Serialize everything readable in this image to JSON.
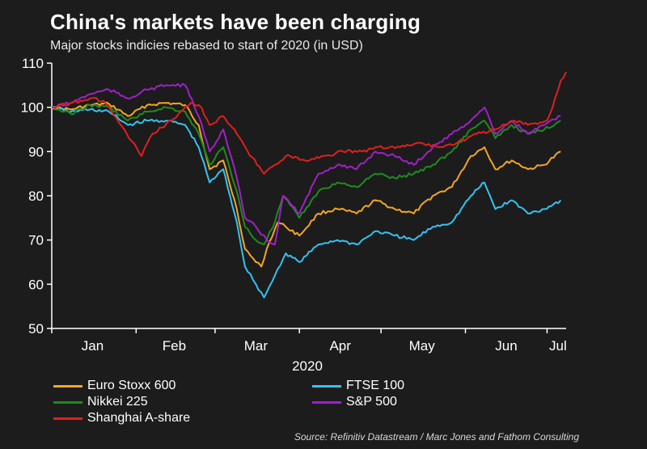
{
  "header": {
    "title": "China's markets have been charging",
    "subtitle": "Major stocks indicies rebased to start of 2020 (in USD)"
  },
  "source": "Source: Refinitiv Datastream / Marc Jones and Fathom Consulting",
  "chart_data": {
    "type": "line",
    "title": "China's markets have been charging",
    "subtitle": "Major stocks indicies rebased to start of 2020 (in USD)",
    "xlabel": "2020",
    "ylabel": "",
    "ylim": [
      50,
      110
    ],
    "yticks": [
      50,
      60,
      70,
      80,
      90,
      100,
      110
    ],
    "xticks": [
      "Jan",
      "Feb",
      "Mar",
      "Apr",
      "May",
      "Jun",
      "Jul"
    ],
    "xlim": [
      "2020-01-01",
      "2020-07-08"
    ],
    "grid": false,
    "legend_position": "bottom",
    "series": [
      {
        "name": "Euro Stoxx 600",
        "color": "#f5a623",
        "points": [
          [
            "2020-01-01",
            100
          ],
          [
            "2020-01-08",
            99.5
          ],
          [
            "2020-01-15",
            100.5
          ],
          [
            "2020-01-22",
            100.8
          ],
          [
            "2020-01-29",
            98
          ],
          [
            "2020-02-05",
            100.5
          ],
          [
            "2020-02-12",
            101
          ],
          [
            "2020-02-19",
            100.5
          ],
          [
            "2020-02-24",
            96
          ],
          [
            "2020-02-28",
            86
          ],
          [
            "2020-03-04",
            88
          ],
          [
            "2020-03-09",
            77
          ],
          [
            "2020-03-12",
            68
          ],
          [
            "2020-03-16",
            65
          ],
          [
            "2020-03-18",
            64
          ],
          [
            "2020-03-20",
            68
          ],
          [
            "2020-03-24",
            74
          ],
          [
            "2020-03-27",
            73
          ],
          [
            "2020-04-01",
            71
          ],
          [
            "2020-04-08",
            76
          ],
          [
            "2020-04-15",
            77
          ],
          [
            "2020-04-22",
            76
          ],
          [
            "2020-04-29",
            79
          ],
          [
            "2020-05-06",
            77
          ],
          [
            "2020-05-13",
            76
          ],
          [
            "2020-05-20",
            80
          ],
          [
            "2020-05-27",
            82
          ],
          [
            "2020-06-03",
            89
          ],
          [
            "2020-06-08",
            91
          ],
          [
            "2020-06-12",
            86
          ],
          [
            "2020-06-18",
            88
          ],
          [
            "2020-06-24",
            86
          ],
          [
            "2020-06-30",
            87
          ],
          [
            "2020-07-06",
            90
          ]
        ]
      },
      {
        "name": "FTSE 100",
        "color": "#33c3f0",
        "points": [
          [
            "2020-01-01",
            100
          ],
          [
            "2020-01-08",
            99
          ],
          [
            "2020-01-15",
            99.5
          ],
          [
            "2020-01-22",
            99
          ],
          [
            "2020-01-29",
            96
          ],
          [
            "2020-02-05",
            97
          ],
          [
            "2020-02-12",
            97
          ],
          [
            "2020-02-19",
            96
          ],
          [
            "2020-02-24",
            91
          ],
          [
            "2020-02-28",
            83
          ],
          [
            "2020-03-04",
            86
          ],
          [
            "2020-03-09",
            74
          ],
          [
            "2020-03-12",
            64
          ],
          [
            "2020-03-16",
            60
          ],
          [
            "2020-03-19",
            57
          ],
          [
            "2020-03-23",
            62
          ],
          [
            "2020-03-27",
            67
          ],
          [
            "2020-04-01",
            65
          ],
          [
            "2020-04-08",
            69
          ],
          [
            "2020-04-15",
            70
          ],
          [
            "2020-04-22",
            69
          ],
          [
            "2020-04-29",
            72
          ],
          [
            "2020-05-06",
            71
          ],
          [
            "2020-05-13",
            70
          ],
          [
            "2020-05-20",
            73
          ],
          [
            "2020-05-27",
            74
          ],
          [
            "2020-06-03",
            80
          ],
          [
            "2020-06-08",
            83
          ],
          [
            "2020-06-12",
            77
          ],
          [
            "2020-06-18",
            79
          ],
          [
            "2020-06-24",
            76
          ],
          [
            "2020-06-30",
            77
          ],
          [
            "2020-07-06",
            79
          ]
        ]
      },
      {
        "name": "Nikkei 225",
        "color": "#1e8c1e",
        "points": [
          [
            "2020-01-01",
            100
          ],
          [
            "2020-01-08",
            98.5
          ],
          [
            "2020-01-15",
            100.5
          ],
          [
            "2020-01-22",
            100
          ],
          [
            "2020-01-29",
            97
          ],
          [
            "2020-02-05",
            99
          ],
          [
            "2020-02-12",
            100
          ],
          [
            "2020-02-19",
            99
          ],
          [
            "2020-02-24",
            94
          ],
          [
            "2020-02-28",
            87
          ],
          [
            "2020-03-04",
            91
          ],
          [
            "2020-03-09",
            81
          ],
          [
            "2020-03-12",
            73
          ],
          [
            "2020-03-16",
            70
          ],
          [
            "2020-03-19",
            69
          ],
          [
            "2020-03-23",
            74
          ],
          [
            "2020-03-26",
            80
          ],
          [
            "2020-04-01",
            75
          ],
          [
            "2020-04-08",
            81
          ],
          [
            "2020-04-15",
            83
          ],
          [
            "2020-04-22",
            82
          ],
          [
            "2020-04-29",
            85
          ],
          [
            "2020-05-06",
            84
          ],
          [
            "2020-05-13",
            85
          ],
          [
            "2020-05-20",
            87
          ],
          [
            "2020-05-27",
            90
          ],
          [
            "2020-06-03",
            95
          ],
          [
            "2020-06-08",
            97
          ],
          [
            "2020-06-12",
            93
          ],
          [
            "2020-06-18",
            96
          ],
          [
            "2020-06-24",
            94
          ],
          [
            "2020-06-30",
            95
          ],
          [
            "2020-07-06",
            97
          ]
        ]
      },
      {
        "name": "S&P 500",
        "color": "#a020c8",
        "points": [
          [
            "2020-01-01",
            100
          ],
          [
            "2020-01-08",
            101
          ],
          [
            "2020-01-15",
            103
          ],
          [
            "2020-01-22",
            104
          ],
          [
            "2020-01-29",
            102
          ],
          [
            "2020-02-05",
            104
          ],
          [
            "2020-02-12",
            105
          ],
          [
            "2020-02-19",
            105
          ],
          [
            "2020-02-24",
            98
          ],
          [
            "2020-02-28",
            90
          ],
          [
            "2020-03-04",
            95
          ],
          [
            "2020-03-09",
            84
          ],
          [
            "2020-03-12",
            75
          ],
          [
            "2020-03-16",
            73
          ],
          [
            "2020-03-20",
            70
          ],
          [
            "2020-03-23",
            69
          ],
          [
            "2020-03-26",
            80
          ],
          [
            "2020-04-01",
            76
          ],
          [
            "2020-04-08",
            85
          ],
          [
            "2020-04-15",
            87
          ],
          [
            "2020-04-22",
            86
          ],
          [
            "2020-04-29",
            90
          ],
          [
            "2020-05-06",
            89
          ],
          [
            "2020-05-13",
            87
          ],
          [
            "2020-05-20",
            91
          ],
          [
            "2020-05-27",
            94
          ],
          [
            "2020-06-03",
            97
          ],
          [
            "2020-06-08",
            100
          ],
          [
            "2020-06-12",
            94
          ],
          [
            "2020-06-18",
            97
          ],
          [
            "2020-06-24",
            94
          ],
          [
            "2020-06-30",
            96
          ],
          [
            "2020-07-06",
            98
          ]
        ]
      },
      {
        "name": "Shanghai A-share",
        "color": "#e0201e",
        "points": [
          [
            "2020-01-01",
            100
          ],
          [
            "2020-01-08",
            101
          ],
          [
            "2020-01-15",
            102
          ],
          [
            "2020-01-20",
            101.5
          ],
          [
            "2020-01-23",
            99
          ],
          [
            "2020-02-03",
            89
          ],
          [
            "2020-02-07",
            94
          ],
          [
            "2020-02-14",
            97
          ],
          [
            "2020-02-21",
            101
          ],
          [
            "2020-02-25",
            100
          ],
          [
            "2020-02-28",
            96
          ],
          [
            "2020-03-04",
            98
          ],
          [
            "2020-03-09",
            94
          ],
          [
            "2020-03-13",
            90
          ],
          [
            "2020-03-19",
            85
          ],
          [
            "2020-03-23",
            87
          ],
          [
            "2020-03-27",
            89
          ],
          [
            "2020-04-03",
            88
          ],
          [
            "2020-04-10",
            89
          ],
          [
            "2020-04-17",
            90
          ],
          [
            "2020-04-24",
            90
          ],
          [
            "2020-04-30",
            91
          ],
          [
            "2020-05-08",
            91
          ],
          [
            "2020-05-15",
            92
          ],
          [
            "2020-05-22",
            91
          ],
          [
            "2020-05-29",
            92
          ],
          [
            "2020-06-05",
            94
          ],
          [
            "2020-06-12",
            95
          ],
          [
            "2020-06-19",
            97
          ],
          [
            "2020-06-24",
            96
          ],
          [
            "2020-07-01",
            97
          ],
          [
            "2020-07-03",
            100
          ],
          [
            "2020-07-06",
            106
          ],
          [
            "2020-07-08",
            108
          ]
        ]
      }
    ]
  }
}
